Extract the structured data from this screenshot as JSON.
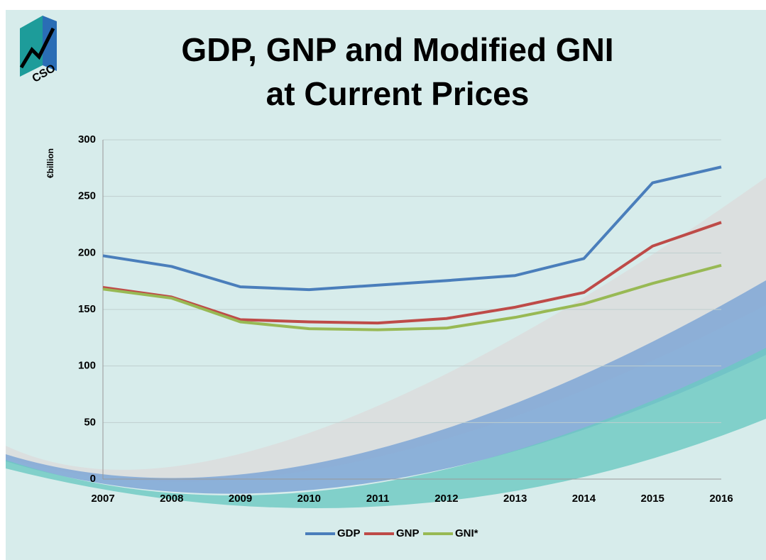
{
  "logo": "CSO",
  "chart_data": {
    "type": "line",
    "title": [
      "GDP, GNP and Modified GNI",
      "at Current Prices"
    ],
    "y_label": "€billion",
    "categories": [
      "2007",
      "2008",
      "2009",
      "2010",
      "2011",
      "2012",
      "2013",
      "2014",
      "2015",
      "2016"
    ],
    "series": [
      {
        "name": "GDP",
        "color": "#4a7ebb",
        "values": [
          197.5,
          188,
          170,
          167.5,
          171.5,
          175.5,
          180,
          195,
          262,
          276
        ]
      },
      {
        "name": "GNP",
        "color": "#be4b48",
        "values": [
          169.5,
          161,
          141,
          139,
          138,
          142,
          152,
          165,
          206,
          227
        ]
      },
      {
        "name": "GNI*",
        "color": "#98b954",
        "values": [
          168,
          160,
          139,
          133,
          132,
          133.5,
          143,
          155,
          173,
          189
        ]
      }
    ],
    "ylim": [
      0,
      300
    ],
    "yticks": [
      0,
      50,
      100,
      150,
      200,
      250,
      300
    ],
    "grid": true,
    "legend": "bottom"
  }
}
